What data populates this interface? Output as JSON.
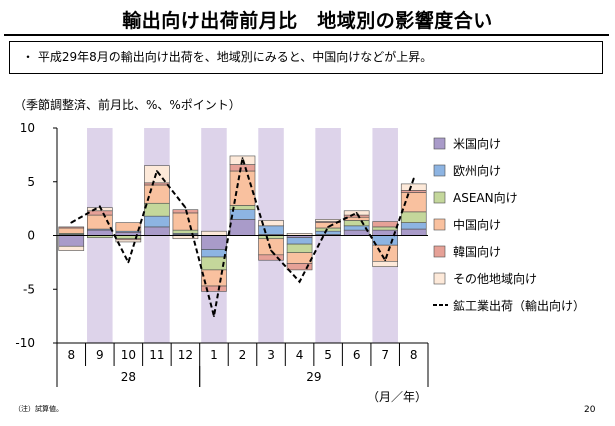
{
  "page": {
    "title": "輸出向け出荷前月比　地域別の影響度合い",
    "summary": "・ 平成29年8月の輸出向け出荷を、地域別にみると、中国向けなどが上昇。",
    "unit_label": "（季節調整済、前月比、%、%ポイント）",
    "footnote": "（注）試算値。",
    "page_number": "20"
  },
  "chart_data": {
    "type": "bar",
    "stacked": true,
    "categories": [
      "8",
      "9",
      "10",
      "11",
      "12",
      "1",
      "2",
      "3",
      "4",
      "5",
      "6",
      "7",
      "8"
    ],
    "year_groups": [
      {
        "label": "28",
        "start": 0,
        "end": 4
      },
      {
        "label": "29",
        "start": 5,
        "end": 12
      }
    ],
    "x_axis_unit": "（月／年）",
    "ylim": [
      -10,
      10
    ],
    "yticks": [
      -10,
      -5,
      0,
      5,
      10
    ],
    "shaded_categories": [
      1,
      3,
      5,
      7,
      9,
      11
    ],
    "shade_color": "#ddd3ea",
    "series": [
      {
        "name": "米国向け",
        "color": "#a99bc9",
        "values": [
          -1.0,
          0.5,
          0.3,
          0.8,
          0.1,
          -1.3,
          1.5,
          0.1,
          -0.2,
          0.1,
          0.5,
          0.5,
          0.6
        ]
      },
      {
        "name": "欧州向け",
        "color": "#8db4e2",
        "values": [
          0.1,
          0.1,
          0.1,
          1.0,
          0.1,
          -0.7,
          0.9,
          0.8,
          -0.6,
          0.3,
          0.4,
          -0.9,
          0.6
        ]
      },
      {
        "name": "ASEAN向け",
        "color": "#c4d79b",
        "values": [
          0.1,
          -0.2,
          -0.3,
          1.2,
          0.3,
          -1.2,
          0.4,
          -0.3,
          -0.8,
          0.3,
          0.5,
          0.3,
          1.0
        ]
      },
      {
        "name": "中国向け",
        "color": "#f9c19f",
        "values": [
          0.5,
          1.3,
          0.8,
          1.7,
          1.6,
          -1.5,
          3.2,
          -1.5,
          -1.0,
          0.5,
          0.3,
          -1.5,
          1.8
        ]
      },
      {
        "name": "韓国向け",
        "color": "#e6a197",
        "values": [
          0.1,
          0.4,
          -0.1,
          0.2,
          0.3,
          -0.5,
          0.6,
          -0.5,
          -0.6,
          0.1,
          0.2,
          0.5,
          0.2
        ]
      },
      {
        "name": "その他地域向け",
        "color": "#fde9d9",
        "values": [
          -0.4,
          0.3,
          -0.2,
          1.6,
          -0.3,
          0.4,
          0.8,
          0.5,
          0.2,
          0.2,
          0.4,
          -0.5,
          0.6
        ]
      }
    ],
    "line": {
      "name": "鉱工業出荷（輸出向け）",
      "color": "#000000",
      "style": "dashed",
      "values": [
        1.2,
        2.7,
        -2.5,
        6.0,
        2.6,
        -7.5,
        7.2,
        -1.4,
        -4.3,
        0.8,
        2.1,
        -2.3,
        5.3
      ]
    }
  }
}
